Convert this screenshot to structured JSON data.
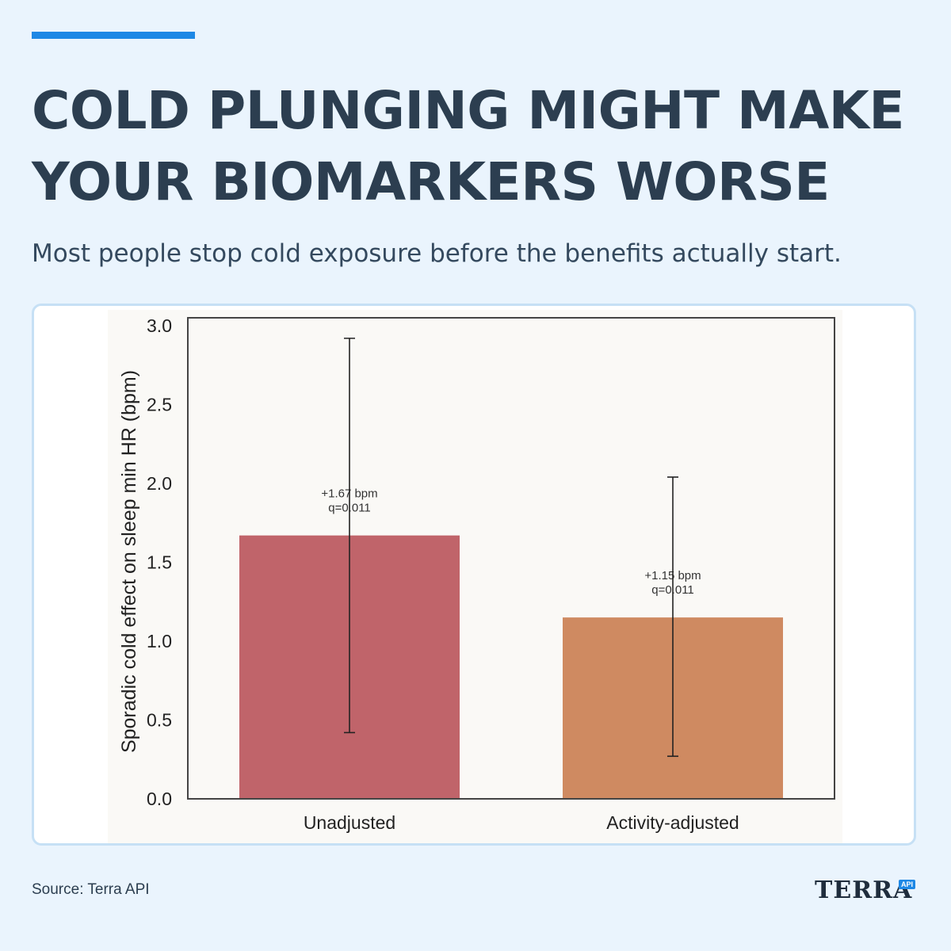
{
  "header": {
    "title": "COLD PLUNGING MIGHT MAKE YOUR BIOMARKERS WORSE",
    "subtitle": "Most people stop cold exposure before the benefits actually start."
  },
  "footer": {
    "source": "Source: Terra API",
    "logo_text": "TERRA",
    "logo_badge": "API"
  },
  "colors": {
    "accent": "#1e88e5",
    "background": "#eaf4fd",
    "plot_background": "#faf9f6",
    "bar_unadjusted": "#c0646a",
    "bar_activity_adjusted": "#cf8a61"
  },
  "chart_data": {
    "type": "bar",
    "title": "",
    "xlabel": "",
    "ylabel": "Sporadic cold effect on sleep min HR (bpm)",
    "ylim": [
      0,
      3.05
    ],
    "yticks": [
      "0.0",
      "0.5",
      "1.0",
      "1.5",
      "2.0",
      "2.5",
      "3.0"
    ],
    "grid": false,
    "categories": [
      "Unadjusted",
      "Activity-adjusted"
    ],
    "values": [
      1.67,
      1.15
    ],
    "error_low": [
      0.42,
      0.27
    ],
    "error_high": [
      2.92,
      2.04
    ],
    "annotations": [
      [
        "+1.67 bpm",
        "q=0.011"
      ],
      [
        "+1.15 bpm",
        "q=0.011"
      ]
    ]
  }
}
